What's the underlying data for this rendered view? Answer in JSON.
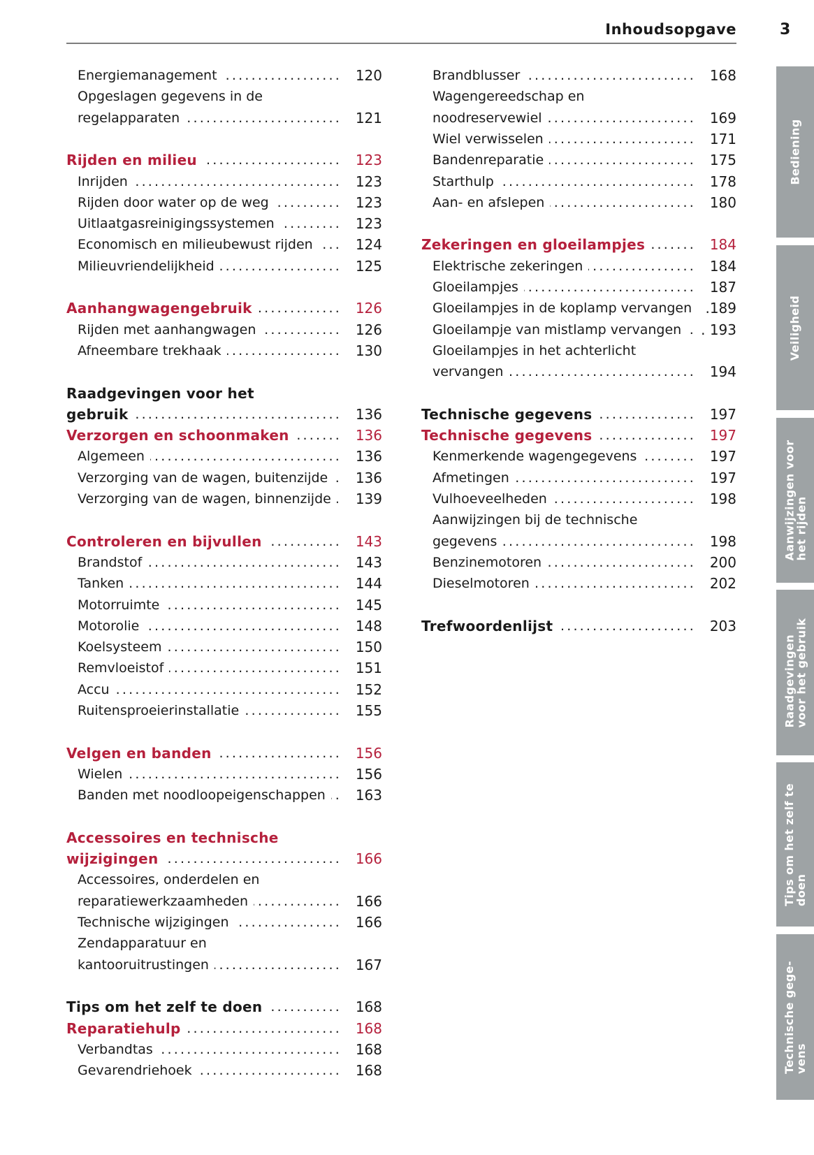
{
  "header": {
    "title": "Inhoudsopgave",
    "page_number": "3"
  },
  "colors": {
    "accent_red": "#b5203c",
    "tab_gray": "#9ea3a5",
    "text": "#1a1a1a"
  },
  "left_column": [
    {
      "row": 0,
      "text": "Energiemanagement",
      "page": "120",
      "style": "item"
    },
    {
      "row": 1,
      "text": "Opgeslagen gegevens in de",
      "style": "item"
    },
    {
      "row": 2,
      "text": "regelapparaten",
      "page": "121",
      "style": "item"
    },
    {
      "row": 4,
      "text": "Rijden en milieu",
      "page": "123",
      "style": "red"
    },
    {
      "row": 5,
      "text": "Inrijden",
      "page": "123",
      "style": "item"
    },
    {
      "row": 6,
      "text": "Rijden door water op de weg",
      "page": "123",
      "style": "item"
    },
    {
      "row": 7,
      "text": "Uitlaatgasreinigingssystemen",
      "page": "123",
      "style": "item"
    },
    {
      "row": 8,
      "text": "Economisch en milieubewust rijden",
      "page": "124",
      "style": "item"
    },
    {
      "row": 9,
      "text": "Milieuvriendelijkheid",
      "page": "125",
      "style": "item"
    },
    {
      "row": 11,
      "text": "Aanhangwagengebruik",
      "page": "126",
      "style": "red"
    },
    {
      "row": 12,
      "text": "Rijden met aanhangwagen",
      "page": "126",
      "style": "item"
    },
    {
      "row": 13,
      "text": "Afneembare trekhaak",
      "page": "130",
      "style": "item"
    },
    {
      "row": 15,
      "text": "Raadgevingen voor het",
      "style": "black"
    },
    {
      "row": 16,
      "text": "gebruik",
      "page": "136",
      "style": "black"
    },
    {
      "row": 17,
      "text": "Verzorgen en schoonmaken",
      "page": "136",
      "style": "red"
    },
    {
      "row": 18,
      "text": "Algemeen",
      "page": "136",
      "style": "item"
    },
    {
      "row": 19,
      "text": "Verzorging van de wagen, buitenzijde",
      "page": "136",
      "style": "item"
    },
    {
      "row": 20,
      "text": "Verzorging van de wagen, binnenzijde",
      "page": "139",
      "style": "item"
    },
    {
      "row": 22,
      "text": "Controleren en bijvullen",
      "page": "143",
      "style": "red"
    },
    {
      "row": 23,
      "text": "Brandstof",
      "page": "143",
      "style": "item"
    },
    {
      "row": 24,
      "text": "Tanken",
      "page": "144",
      "style": "item"
    },
    {
      "row": 25,
      "text": "Motorruimte",
      "page": "145",
      "style": "item"
    },
    {
      "row": 26,
      "text": "Motorolie",
      "page": "148",
      "style": "item"
    },
    {
      "row": 27,
      "text": "Koelsysteem",
      "page": "150",
      "style": "item"
    },
    {
      "row": 28,
      "text": "Remvloeistof",
      "page": "151",
      "style": "item"
    },
    {
      "row": 29,
      "text": "Accu",
      "page": "152",
      "style": "item"
    },
    {
      "row": 30,
      "text": "Ruitensproeierinstallatie",
      "page": "155",
      "style": "item"
    },
    {
      "row": 32,
      "text": "Velgen en banden",
      "page": "156",
      "style": "red"
    },
    {
      "row": 33,
      "text": "Wielen",
      "page": "156",
      "style": "item"
    },
    {
      "row": 34,
      "text": "Banden met noodloopeigenschappen",
      "page": "163",
      "style": "item"
    },
    {
      "row": 36,
      "text": "Accessoires en technische",
      "style": "red"
    },
    {
      "row": 37,
      "text": "wijzigingen",
      "page": "166",
      "style": "red"
    },
    {
      "row": 38,
      "text": "Accessoires, onderdelen en",
      "style": "item"
    },
    {
      "row": 39,
      "text": "reparatiewerkzaamheden",
      "page": "166",
      "style": "item"
    },
    {
      "row": 40,
      "text": "Technische wijzigingen",
      "page": "166",
      "style": "item"
    },
    {
      "row": 41,
      "text": "Zendapparatuur en",
      "style": "item"
    },
    {
      "row": 42,
      "text": "kantooruitrustingen",
      "page": "167",
      "style": "item"
    },
    {
      "row": 44,
      "text": "Tips om het zelf te doen",
      "page": "168",
      "style": "black"
    },
    {
      "row": 45,
      "text": "Reparatiehulp",
      "page": "168",
      "style": "red"
    },
    {
      "row": 46,
      "text": "Verbandtas",
      "page": "168",
      "style": "item"
    },
    {
      "row": 47,
      "text": "Gevarendriehoek",
      "page": "168",
      "style": "item"
    }
  ],
  "right_column": [
    {
      "row": 0,
      "text": "Brandblusser",
      "page": "168",
      "style": "item"
    },
    {
      "row": 1,
      "text": "Wagengereedschap en",
      "style": "item"
    },
    {
      "row": 2,
      "text": "noodreservewiel",
      "page": "169",
      "style": "item"
    },
    {
      "row": 3,
      "text": "Wiel verwisselen",
      "page": "171",
      "style": "item"
    },
    {
      "row": 4,
      "text": "Bandenreparatie",
      "page": "175",
      "style": "item"
    },
    {
      "row": 5,
      "text": "Starthulp",
      "page": "178",
      "style": "item"
    },
    {
      "row": 6,
      "text": "Aan- en afslepen",
      "page": "180",
      "style": "item"
    },
    {
      "row": 8,
      "text": "Zekeringen en gloeilampjes",
      "page": "184",
      "style": "red"
    },
    {
      "row": 9,
      "text": "Elektrische zekeringen",
      "page": "184",
      "style": "item"
    },
    {
      "row": 10,
      "text": "Gloeilampjes",
      "page": "187",
      "style": "item"
    },
    {
      "row": 11,
      "text": "Gloeilampjes in de koplamp vervangen",
      "page": ".189",
      "style": "item"
    },
    {
      "row": 12,
      "text": "Gloeilampje van mistlamp vervangen",
      "page": ". 193",
      "style": "item"
    },
    {
      "row": 13,
      "text": "Gloeilampjes in het achterlicht",
      "style": "item"
    },
    {
      "row": 14,
      "text": "vervangen",
      "page": "194",
      "style": "item"
    },
    {
      "row": 16,
      "text": "Technische gegevens",
      "page": "197",
      "style": "black"
    },
    {
      "row": 17,
      "text": "Technische gegevens",
      "page": "197",
      "style": "red"
    },
    {
      "row": 18,
      "text": "Kenmerkende wagengegevens",
      "page": "197",
      "style": "item"
    },
    {
      "row": 19,
      "text": "Afmetingen",
      "page": "197",
      "style": "item"
    },
    {
      "row": 20,
      "text": "Vulhoeveelheden",
      "page": "198",
      "style": "item"
    },
    {
      "row": 21,
      "text": "Aanwijzingen bij de technische",
      "style": "item"
    },
    {
      "row": 22,
      "text": "gegevens",
      "page": "198",
      "style": "item"
    },
    {
      "row": 23,
      "text": "Benzinemotoren",
      "page": "200",
      "style": "item"
    },
    {
      "row": 24,
      "text": "Dieselmotoren",
      "page": "202",
      "style": "item"
    },
    {
      "row": 26,
      "text": "Trefwoordenlijst",
      "page": "203",
      "style": "black"
    }
  ],
  "side_tabs": [
    {
      "label": "Bediening"
    },
    {
      "label": "Veiligheid"
    },
    {
      "label": "Aanwijzingen voor\nhet rijden"
    },
    {
      "label": "Raadgevingen\nvoor het gebruik"
    },
    {
      "label": "Tips om het zelf te\ndoen"
    },
    {
      "label": "Technische gege-\nvens"
    }
  ]
}
